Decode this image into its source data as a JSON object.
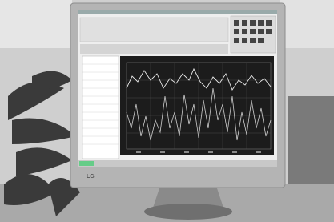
{
  "monitor": {
    "brand": "LG"
  }
}
